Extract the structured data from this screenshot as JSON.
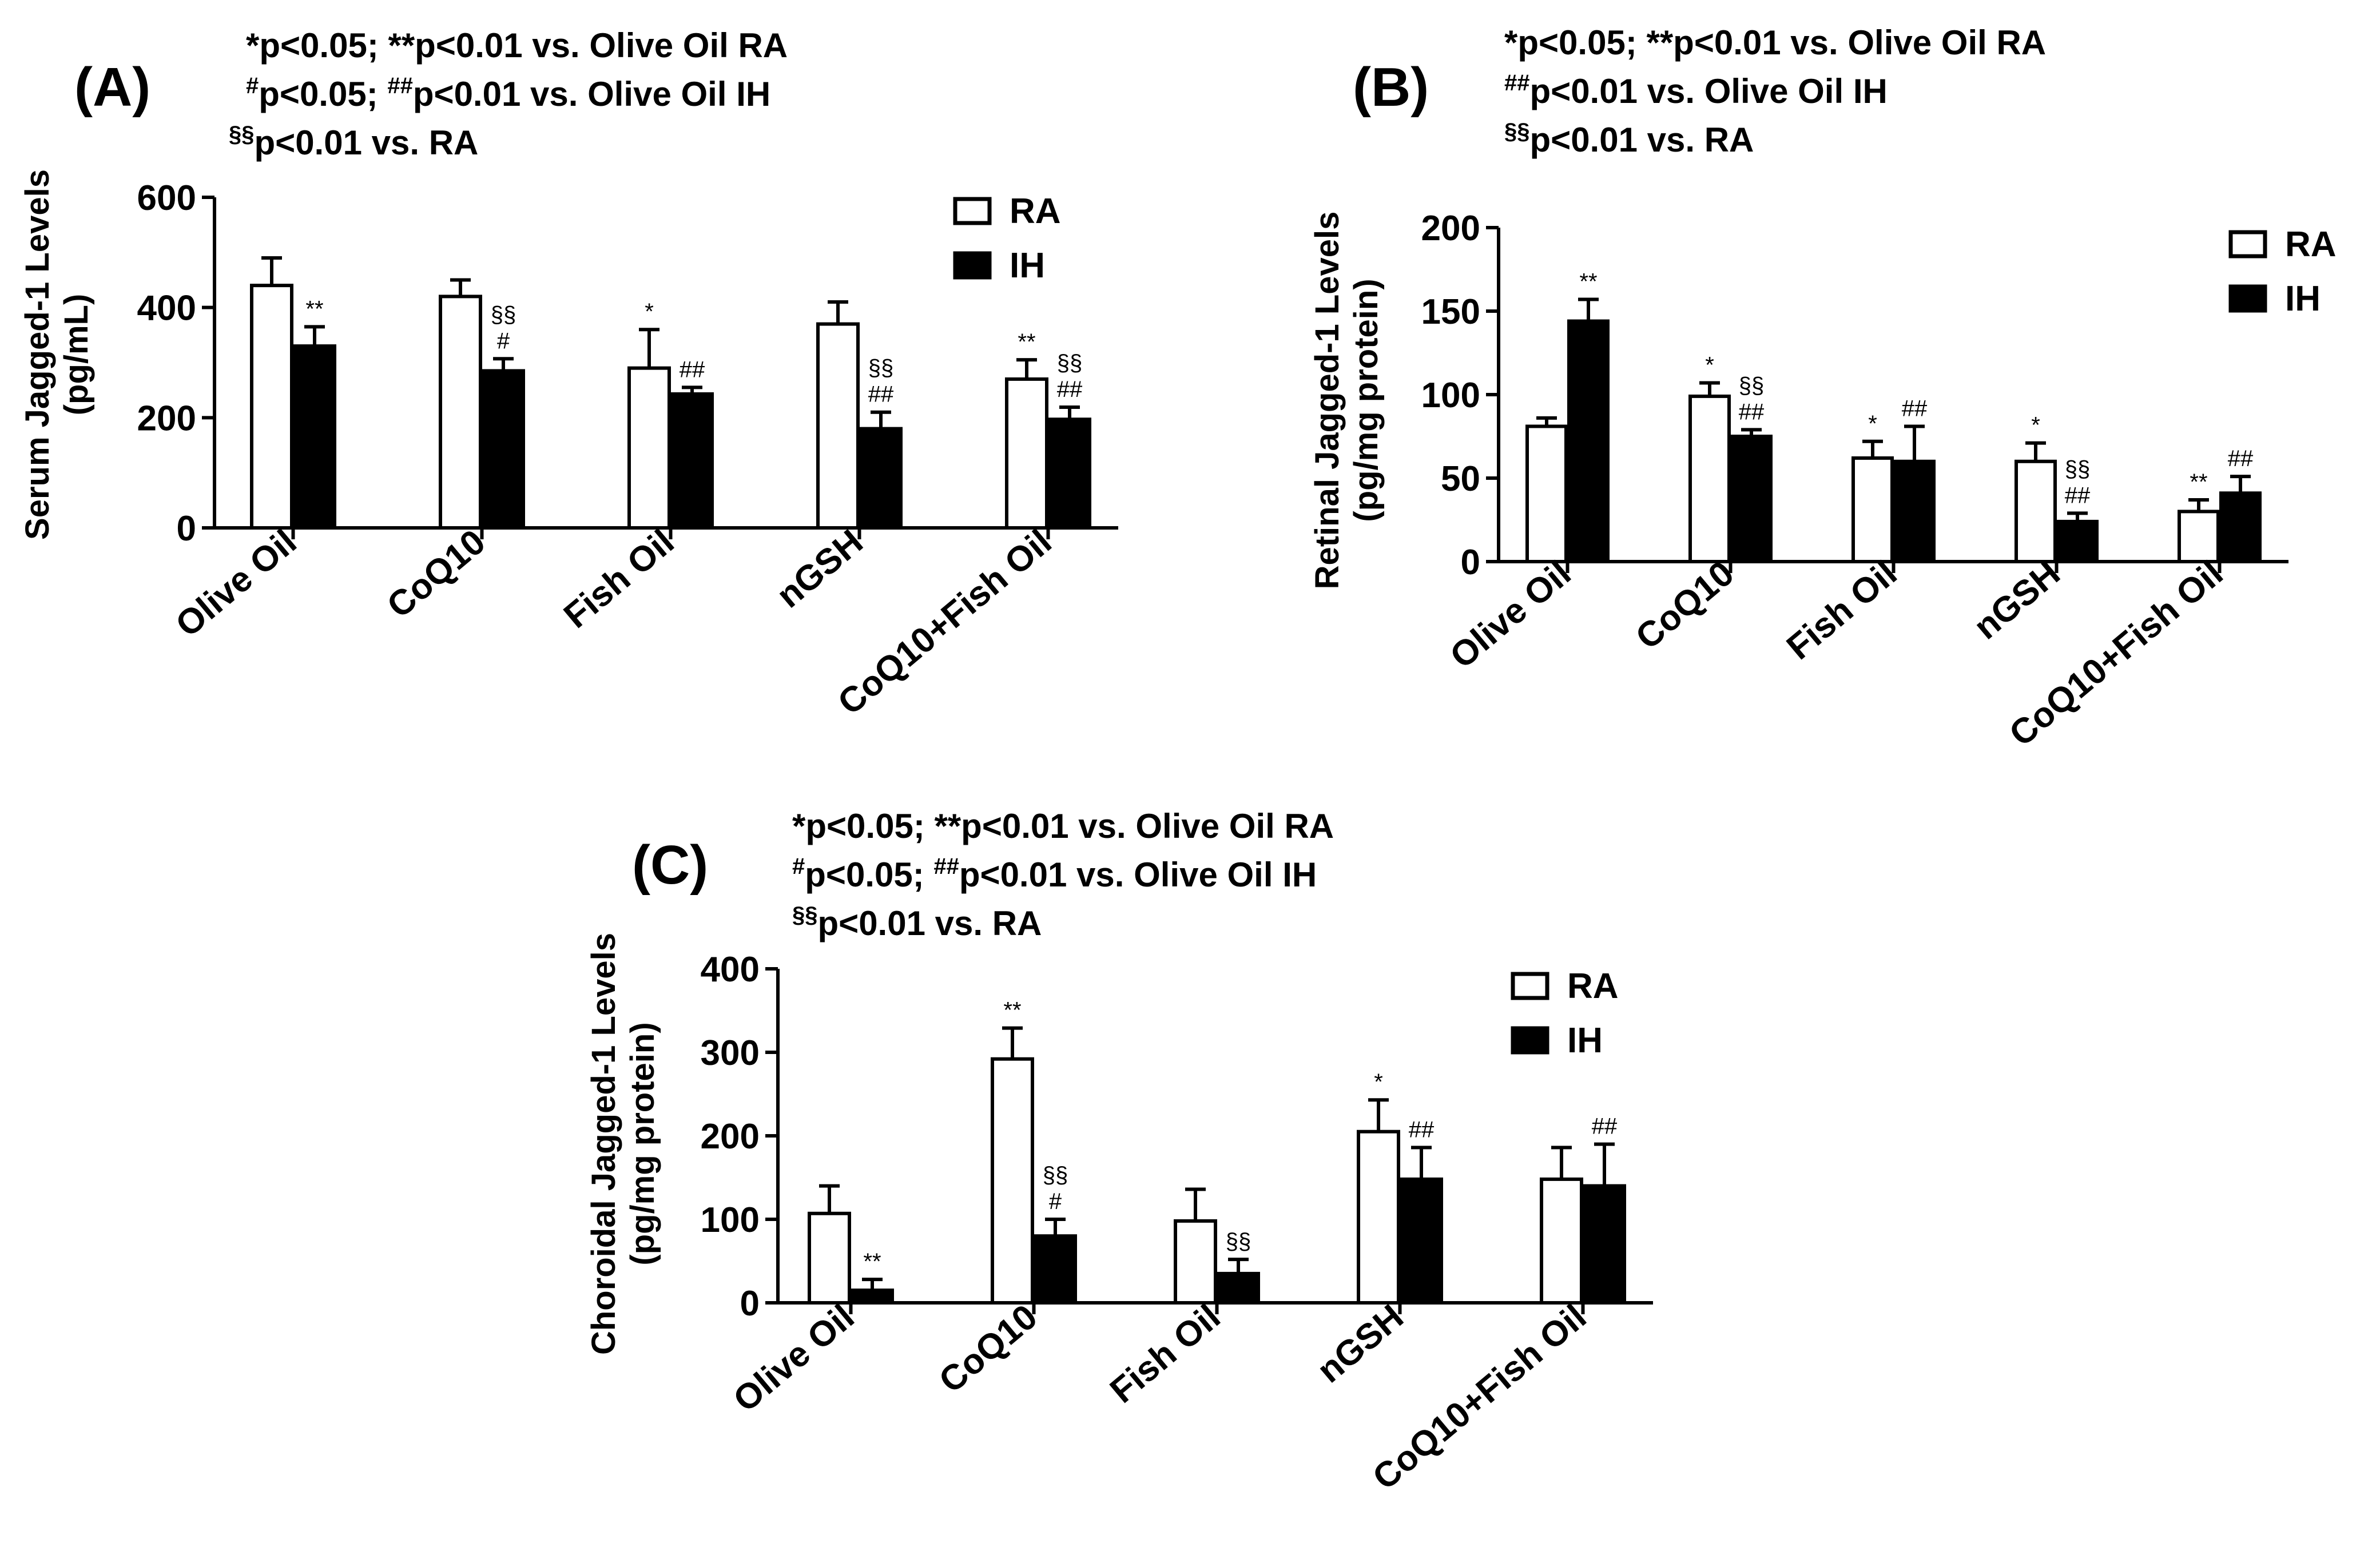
{
  "chart_data": [
    {
      "type": "bar",
      "panel": "(A)",
      "notes": [
        {
          "sup": "",
          "text": "*p<0.05; **p<0.01 vs. Olive Oil RA"
        },
        {
          "sup": "#",
          "text": "p<0.05; ",
          "sup2": "##",
          "text2": "p<0.01 vs. Olive Oil IH"
        },
        {
          "sup": "§§",
          "text": "p<0.01 vs. RA"
        }
      ],
      "ylabel_lines": [
        "Serum Jagged-1 Levels",
        "(pg/mL)"
      ],
      "ylim": [
        0,
        600
      ],
      "yticks": [
        "0",
        "200",
        "400",
        "600"
      ],
      "categories": [
        "Olive Oil",
        "CoQ10",
        "Fish Oil",
        "nGSH",
        "CoQ10+Fish Oil"
      ],
      "series": [
        {
          "name": "RA",
          "values": [
            440,
            420,
            290,
            370,
            270
          ],
          "errors": [
            50,
            30,
            70,
            40,
            35
          ],
          "annotations": [
            "",
            "",
            "*",
            "",
            "**"
          ]
        },
        {
          "name": "IH",
          "values": [
            330,
            285,
            243,
            180,
            197
          ],
          "errors": [
            35,
            22,
            12,
            30,
            22
          ],
          "annotations": [
            "**",
            "§§\n#",
            "##",
            "§§\n##",
            "§§\n##"
          ]
        }
      ],
      "legend": [
        "RA",
        "IH"
      ]
    },
    {
      "type": "bar",
      "panel": "(B)",
      "notes": [
        {
          "sup": "",
          "text": "*p<0.05; **p<0.01 vs. Olive Oil RA"
        },
        {
          "sup": "##",
          "text": "p<0.01 vs. Olive Oil IH"
        },
        {
          "sup": "§§",
          "text": "p<0.01 vs. RA"
        }
      ],
      "ylabel_lines": [
        "Retinal Jagged-1 Levels",
        "(pg/mg protein)"
      ],
      "ylim": [
        0,
        200
      ],
      "yticks": [
        "0",
        "50",
        "100",
        "150",
        "200"
      ],
      "categories": [
        "Olive Oil",
        "CoQ10",
        "Fish Oil",
        "nGSH",
        "CoQ10+Fish Oil"
      ],
      "series": [
        {
          "name": "RA",
          "values": [
            81,
            99,
            62,
            60,
            30
          ],
          "errors": [
            5,
            8,
            10,
            11,
            7
          ],
          "annotations": [
            "",
            "*",
            "*",
            "*",
            "**"
          ]
        },
        {
          "name": "IH",
          "values": [
            144,
            75,
            60,
            24,
            41
          ],
          "errors": [
            13,
            4,
            21,
            5,
            10
          ],
          "annotations": [
            "**",
            "§§\n##",
            "##",
            "§§\n##",
            "##"
          ]
        }
      ],
      "legend": [
        "RA",
        "IH"
      ]
    },
    {
      "type": "bar",
      "panel": "(C)",
      "notes": [
        {
          "sup": "",
          "text": "*p<0.05; **p<0.01 vs. Olive Oil RA"
        },
        {
          "sup": "#",
          "text": "p<0.05; ",
          "sup2": "##",
          "text2": "p<0.01 vs. Olive Oil IH"
        },
        {
          "sup": "§§",
          "text": "p<0.01 vs. RA"
        }
      ],
      "ylabel_lines": [
        "Choroidal Jagged-1 Levels",
        "(pg/mg protein)"
      ],
      "ylim": [
        0,
        400
      ],
      "yticks": [
        "0",
        "100",
        "200",
        "300",
        "400"
      ],
      "categories": [
        "Olive Oil",
        "CoQ10",
        "Fish Oil",
        "nGSH",
        "CoQ10+Fish Oil"
      ],
      "series": [
        {
          "name": "RA",
          "values": [
            107,
            292,
            98,
            205,
            148
          ],
          "errors": [
            33,
            37,
            38,
            38,
            38
          ],
          "annotations": [
            "",
            "**",
            "",
            "*",
            ""
          ]
        },
        {
          "name": "IH",
          "values": [
            15,
            80,
            35,
            148,
            140
          ],
          "errors": [
            13,
            20,
            17,
            38,
            50
          ],
          "annotations": [
            "**",
            "§§\n#",
            "§§",
            "##",
            "##"
          ]
        }
      ],
      "legend": [
        "RA",
        "IH"
      ]
    }
  ]
}
